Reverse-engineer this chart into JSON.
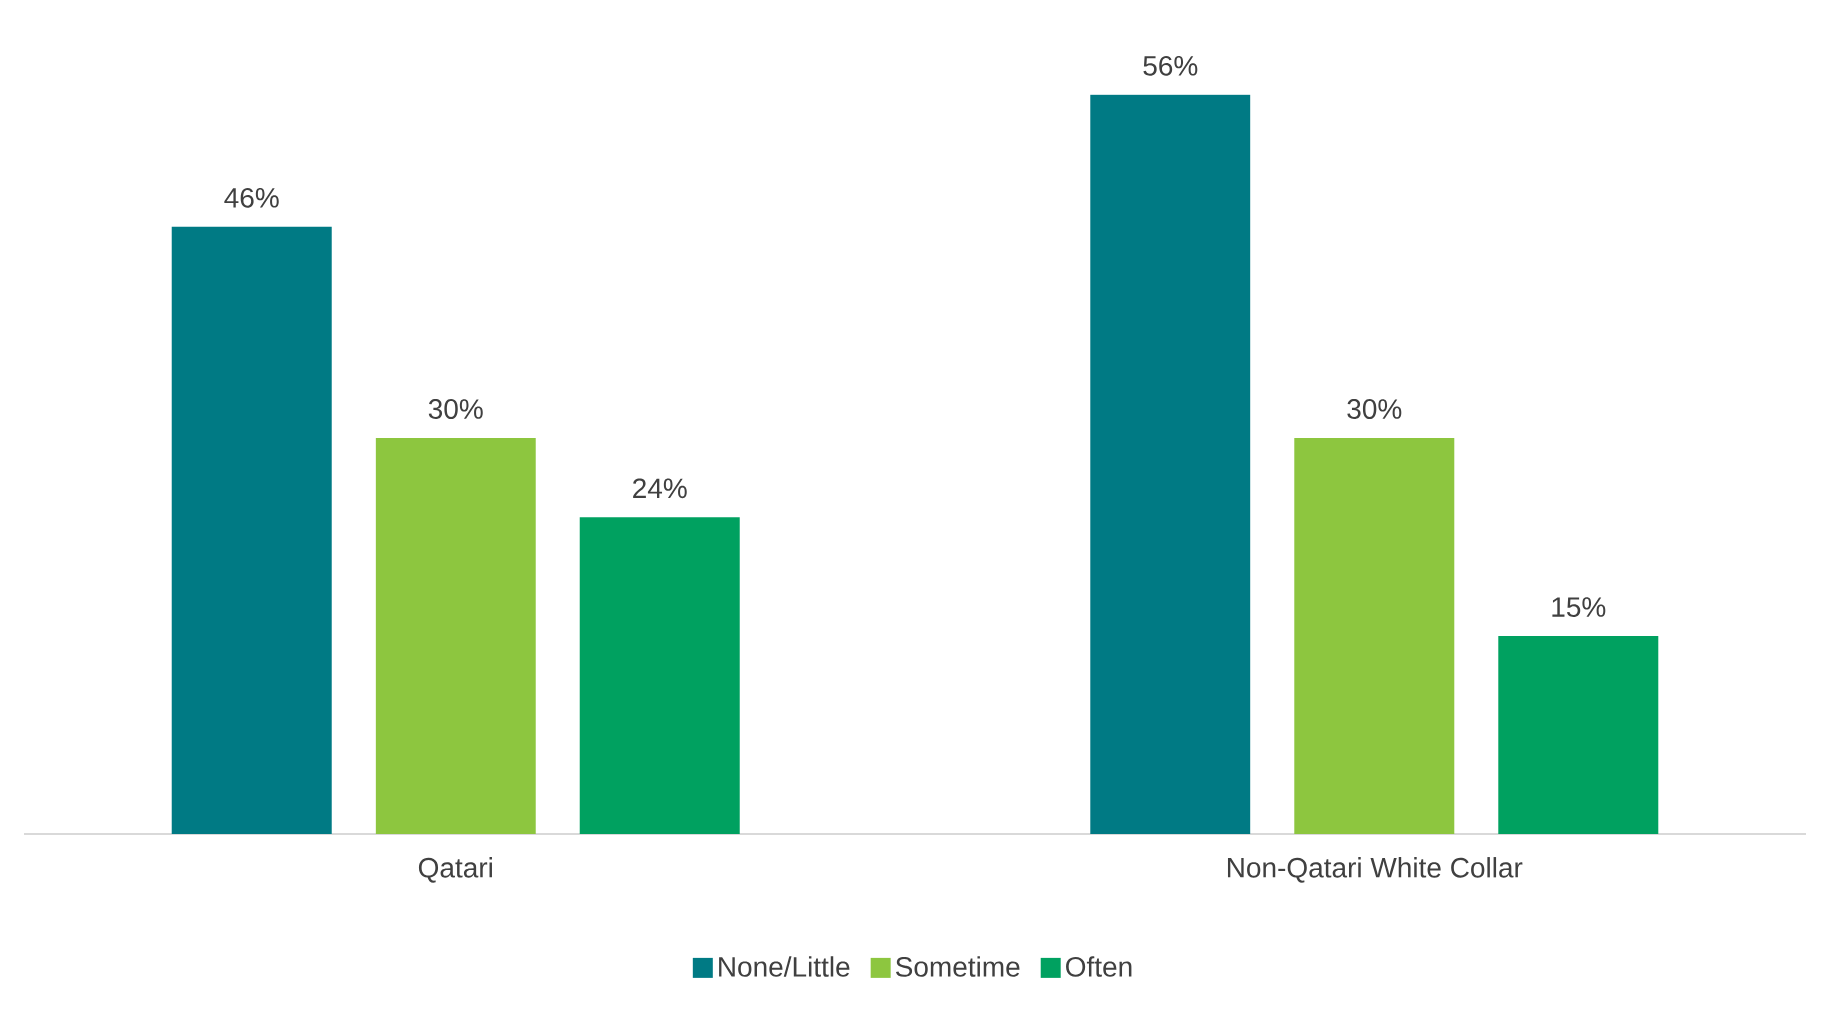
{
  "chart_data": {
    "type": "bar",
    "categories": [
      "Qatari",
      "Non-Qatari White Collar"
    ],
    "legend": "bottom",
    "series": [
      {
        "name": "None/Little",
        "color": "#007a84",
        "values": [
          46,
          56
        ],
        "value_labels": [
          "46%",
          "56%"
        ]
      },
      {
        "name": "Sometime",
        "color": "#8dc63f",
        "values": [
          30,
          30
        ],
        "value_labels": [
          "30%",
          "30%"
        ]
      },
      {
        "name": "Often",
        "color": "#00a160",
        "values": [
          24,
          15
        ],
        "value_labels": [
          "24%",
          "15%"
        ]
      }
    ]
  }
}
